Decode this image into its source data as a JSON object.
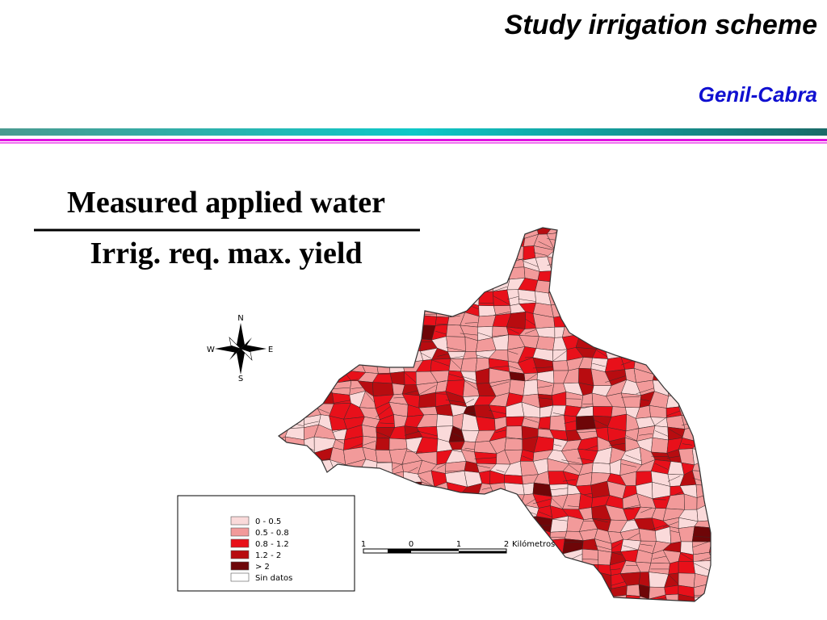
{
  "header": {
    "title": "Study irrigation scheme",
    "subtitle": "Genil-Cabra"
  },
  "fraction": {
    "numerator": "Measured applied water",
    "denominator": "Irrig. req. max. yield"
  },
  "compass": {
    "n": "N",
    "s": "S",
    "w": "W",
    "e": "E"
  },
  "legend": {
    "items": [
      {
        "label": "0 - 0.5",
        "color": "#fadada"
      },
      {
        "label": "0.5 - 0.8",
        "color": "#f29a9a"
      },
      {
        "label": "0.8 - 1.2",
        "color": "#e8101a"
      },
      {
        "label": "1.2 - 2",
        "color": "#b80c10"
      },
      {
        "label": "> 2",
        "color": "#6e0608"
      },
      {
        "label": "Sin datos",
        "color": "#ffffff"
      }
    ]
  },
  "scale_bar": {
    "labels": [
      "1",
      "0",
      "1",
      "2"
    ],
    "unit": "Kilómetros"
  }
}
